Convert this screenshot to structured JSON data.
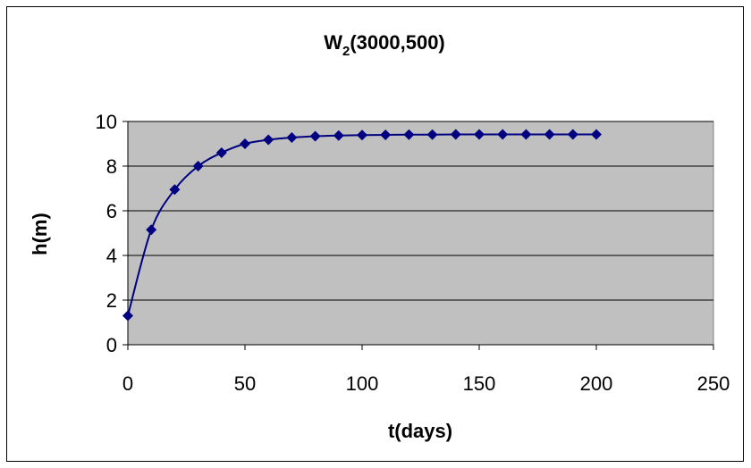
{
  "chart_data": {
    "type": "line",
    "title_main": "W",
    "title_sub": "2",
    "title_rest": "(3000,500)",
    "xlabel": "t(days)",
    "ylabel": "h(m)",
    "xlim": [
      0,
      250
    ],
    "ylim": [
      0,
      10
    ],
    "xticks": [
      0,
      50,
      100,
      150,
      200,
      250
    ],
    "yticks": [
      0,
      2,
      4,
      6,
      8,
      10
    ],
    "grid": "horizontal",
    "plot_background": "#c0c0c0",
    "series_color": "#000080",
    "marker": "diamond",
    "series": [
      {
        "x": [
          0,
          10,
          20,
          30,
          40,
          50,
          60,
          70,
          80,
          90,
          100,
          110,
          120,
          130,
          140,
          150,
          160,
          170,
          180,
          190,
          200
        ],
        "values": [
          1.3,
          5.15,
          6.95,
          8.0,
          8.6,
          9.0,
          9.18,
          9.28,
          9.34,
          9.37,
          9.39,
          9.4,
          9.41,
          9.41,
          9.42,
          9.42,
          9.42,
          9.42,
          9.42,
          9.42,
          9.42
        ]
      }
    ]
  }
}
